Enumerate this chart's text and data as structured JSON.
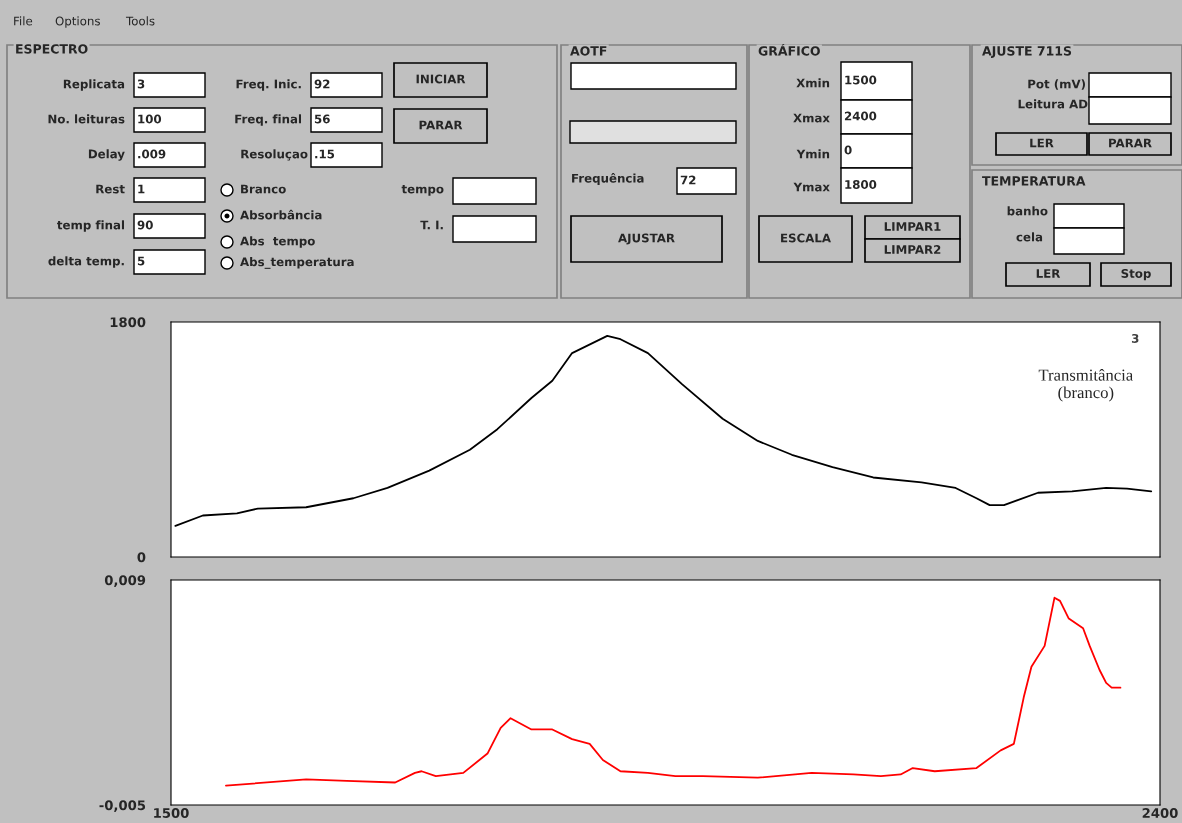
{
  "chart_data": [
    {
      "type": "other",
      "annotations": [
        "File",
        "Options",
        "Tools",
        "ESPECTRO",
        "Replicata",
        "3",
        "No. leituras",
        "100",
        "Delay",
        ".009",
        "Rest",
        "1",
        "temp final",
        "90",
        "delta temp.",
        "5",
        "Freq. Inic.",
        "92",
        "Freq. final",
        "56",
        "Resoluçao",
        ".15",
        "Branco",
        "Absorbância",
        "Abs  tempo",
        "Abs_temperatura",
        "INICIAR",
        "PARAR",
        "tempo",
        "T. I.",
        "AOTF",
        "Frequência",
        "72",
        "AJUSTAR",
        "GRÁFICO",
        "Xmin",
        "1500",
        "Xmax",
        "2400",
        "Ymin",
        "0",
        "Ymax",
        "1800",
        "ESCALA",
        "LIMPAR1",
        "LIMPAR2",
        "AJUSTE 711S",
        "Pot (mV)",
        "Leitura AD",
        "LER",
        "PARAR",
        "TEMPERATURA",
        "banho",
        "cela",
        "LER",
        "Stop"
      ]
    },
    {
      "type": "line",
      "xlim": [
        1500,
        2400
      ],
      "ylim": [
        0,
        1800
      ],
      "yticks": [
        0,
        1800
      ],
      "tick_labels": "y",
      "annotations": [
        "3",
        "Transmitância\n(branco)"
      ],
      "series": [
        {
          "color": "#000000",
          "x": [
            1504,
            1529,
            1560,
            1579,
            1623,
            1666,
            1697,
            1735,
            1772,
            1797,
            1828,
            1847,
            1865,
            1878,
            1897,
            1909,
            1934,
            1965,
            2002,
            2034,
            2065,
            2102,
            2139,
            2183,
            2214,
            2233,
            2245,
            2258,
            2289,
            2320,
            2351,
            2370,
            2392
          ],
          "values": [
            238,
            318,
            334,
            371,
            381,
            450,
            529,
            662,
            821,
            979,
            1218,
            1350,
            1562,
            1615,
            1694,
            1668,
            1562,
            1324,
            1059,
            889,
            783,
            688,
            609,
            572,
            529,
            450,
            397,
            397,
            492,
            503,
            529,
            524,
            503
          ]
        }
      ]
    },
    {
      "type": "line",
      "xlim": [
        1500,
        2400
      ],
      "ylim": [
        -0.005,
        0.009
      ],
      "xticks": [
        1500,
        2400
      ],
      "yticks": [
        {
          "value": -0.005,
          "label": "-0,005"
        },
        {
          "value": 0.009,
          "label": "0,009"
        }
      ],
      "series": [
        {
          "color": "#ff0000",
          "x": [
            1550,
            1623,
            1660,
            1704,
            1722,
            1728,
            1741,
            1766,
            1788,
            1800,
            1809,
            1828,
            1847,
            1865,
            1881,
            1893,
            1909,
            1934,
            1959,
            1984,
            2034,
            2083,
            2121,
            2146,
            2164,
            2175,
            2195,
            2233,
            2255,
            2267,
            2276,
            2283,
            2295,
            2304,
            2309,
            2317,
            2330,
            2336,
            2345,
            2351,
            2356,
            2364
          ],
          "values": [
            -0.0038,
            -0.0034,
            -0.0035,
            -0.0036,
            -0.003,
            -0.0029,
            -0.0032,
            -0.003,
            -0.0018,
            -0.0002,
            0.0004,
            -0.0003,
            -0.0003,
            -0.0009,
            -0.0012,
            -0.0022,
            -0.0029,
            -0.003,
            -0.0032,
            -0.0032,
            -0.0033,
            -0.003,
            -0.0031,
            -0.0032,
            -0.0031,
            -0.0027,
            -0.0029,
            -0.0027,
            -0.0016,
            -0.0012,
            0.0017,
            0.0036,
            0.0049,
            0.0079,
            0.0077,
            0.0066,
            0.006,
            0.0049,
            0.0034,
            0.0026,
            0.0023,
            0.0023
          ]
        }
      ]
    }
  ]
}
